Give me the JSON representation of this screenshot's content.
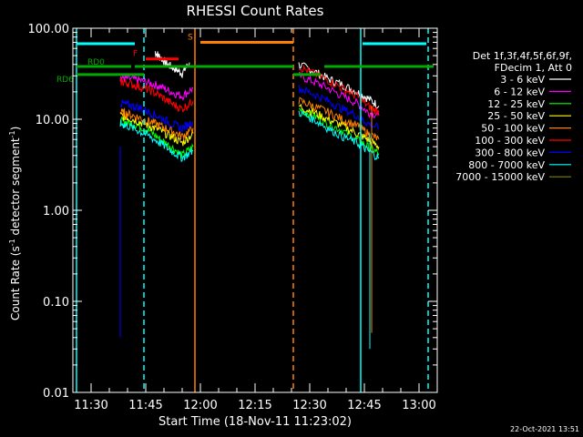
{
  "chart_data": {
    "type": "line",
    "title": "RHESSI Count Rates",
    "xlabel": "Start Time (18-Nov-11 11:23:02)",
    "ylabel_main": "Count Rate (s",
    "ylabel_sup1": "-1",
    "ylabel_mid": " detector segment",
    "ylabel_sup2": "-1",
    "ylabel_end": ")",
    "yscale": "log",
    "ylim": [
      0.01,
      100
    ],
    "xlim_minutes": [
      685,
      785
    ],
    "xticks": [
      {
        "m": 690,
        "label": "11:30"
      },
      {
        "m": 705,
        "label": "11:45"
      },
      {
        "m": 720,
        "label": "12:00"
      },
      {
        "m": 735,
        "label": "12:15"
      },
      {
        "m": 750,
        "label": "12:30"
      },
      {
        "m": 765,
        "label": "12:45"
      },
      {
        "m": 780,
        "label": "13:00"
      }
    ],
    "yticks": [
      {
        "v": 100,
        "label": "100.00"
      },
      {
        "v": 10,
        "label": "10.00"
      },
      {
        "v": 1,
        "label": "1.00"
      },
      {
        "v": 0.1,
        "label": "0.10"
      },
      {
        "v": 0.01,
        "label": "0.01"
      }
    ],
    "legend_header": [
      "Det 1f,3f,4f,5f,6f,9f,",
      "FDecim 1, Att 0"
    ],
    "legend_position": "right",
    "series": [
      {
        "name": "3 - 6 keV",
        "color": "#ffffff",
        "segments": [
          {
            "m": [
              707.5,
              709,
              711,
              713,
              715,
              717
            ],
            "v": [
              55,
              48,
              40,
              36,
              32,
              42
            ]
          },
          {
            "m": [
              747,
              751,
              755,
              759,
              763,
              766,
              769
            ],
            "v": [
              40,
              34,
              28,
              24,
              20,
              17,
              14
            ]
          }
        ]
      },
      {
        "name": "6 - 12 keV",
        "color": "#ff00ff",
        "segments": [
          {
            "m": [
              698,
              700,
              703,
              706,
              709,
              712,
              715,
              718
            ],
            "v": [
              29,
              28,
              27,
              25,
              23,
              20,
              18,
              22
            ]
          },
          {
            "m": [
              747,
              751,
              755,
              759,
              763,
              766,
              769
            ],
            "v": [
              30,
              26,
              22,
              18,
              15,
              12,
              11
            ]
          }
        ]
      },
      {
        "name": "12 - 25 keV",
        "color": "#00ff00",
        "segments": [
          {
            "m": [
              698,
              700,
              703,
              706,
              709,
              712,
              715,
              718
            ],
            "v": [
              9.5,
              9.2,
              8.5,
              7.5,
              6,
              5,
              4,
              5
            ]
          },
          {
            "m": [
              747,
              751,
              755,
              759,
              763,
              766,
              769
            ],
            "v": [
              13,
              11,
              9,
              7.5,
              6,
              5,
              4.2
            ]
          }
        ]
      },
      {
        "name": "25 - 50 keV",
        "color": "#ffff00",
        "segments": [
          {
            "m": [
              698,
              700,
              703,
              706,
              709,
              712,
              715,
              718
            ],
            "v": [
              11,
              10.5,
              9.5,
              8.5,
              7.5,
              6.5,
              5.5,
              7
            ]
          },
          {
            "m": [
              747,
              751,
              755,
              759,
              763,
              766,
              769
            ],
            "v": [
              14,
              12,
              10,
              8.5,
              7,
              6,
              5
            ]
          }
        ]
      },
      {
        "name": "50 - 100 keV",
        "color": "#ff8000",
        "segments": [
          {
            "m": [
              698,
              700,
              703,
              706,
              709,
              712,
              715,
              718
            ],
            "v": [
              12,
              11.5,
              10.5,
              9.5,
              8.5,
              7.5,
              6.5,
              8
            ]
          },
          {
            "m": [
              747,
              751,
              755,
              759,
              763,
              766,
              769
            ],
            "v": [
              16,
              14,
              12,
              10,
              8.5,
              7,
              6
            ]
          }
        ]
      },
      {
        "name": "100 - 300 keV",
        "color": "#ff0000",
        "segments": [
          {
            "m": [
              698,
              700,
              703,
              706,
              709,
              712,
              715,
              718
            ],
            "v": [
              26,
              25,
              23,
              21,
              18,
              15,
              13,
              16
            ]
          },
          {
            "m": [
              747,
              751,
              755,
              759,
              763,
              766,
              769
            ],
            "v": [
              38,
              32,
              27,
              22,
              18,
              14,
              12
            ]
          }
        ]
      },
      {
        "name": "300 - 800 keV",
        "color": "#0000ff",
        "segments": [
          {
            "m": [
              698,
              700,
              703,
              706,
              709,
              712,
              715,
              718
            ],
            "v": [
              15,
              14.5,
              13.5,
              12,
              10.5,
              9,
              8,
              9.5
            ]
          },
          {
            "m": [
              747,
              751,
              755,
              759,
              763,
              766,
              769
            ],
            "v": [
              22,
              19,
              16,
              13,
              11,
              9,
              8
            ]
          }
        ]
      },
      {
        "name": "800 - 7000 keV",
        "color": "#00ffff",
        "segments": [
          {
            "m": [
              698,
              700,
              703,
              706,
              709,
              712,
              715,
              718
            ],
            "v": [
              9,
              8.5,
              7.5,
              6.5,
              5.5,
              4.5,
              3.8,
              4.5
            ]
          },
          {
            "m": [
              747,
              751,
              755,
              759,
              763,
              766,
              769
            ],
            "v": [
              12,
              10,
              8,
              6.5,
              5.5,
              4.5,
              3.8
            ]
          }
        ]
      },
      {
        "name": "7000 - 15000 keV",
        "color": "#808000",
        "segments": []
      }
    ],
    "attenuator_bars": {
      "color": "#00ffff",
      "segments": [
        {
          "m": [
            686,
            702
          ]
        },
        {
          "m": [
            764.5,
            782
          ]
        }
      ]
    },
    "spikes": [
      {
        "m": 698,
        "v": [
          0.04,
          5
        ],
        "color": "#0000ff"
      },
      {
        "m": 766.5,
        "v": [
          0.03,
          7
        ],
        "color": "#00ffff"
      },
      {
        "m": 767,
        "v": [
          0.045,
          14
        ],
        "color": "#ff8000"
      }
    ],
    "boundaries": [
      {
        "m": 686,
        "style": "solid",
        "color": "#00ffff"
      },
      {
        "m": 704.5,
        "style": "dashed",
        "color": "#00ffff"
      },
      {
        "m": 718.5,
        "style": "solid",
        "color": "#ff8000"
      },
      {
        "m": 745.5,
        "style": "dashed",
        "color": "#ff8000"
      },
      {
        "m": 764,
        "style": "solid",
        "color": "#00ffff"
      },
      {
        "m": 782.5,
        "style": "dashed",
        "color": "#00ffff"
      }
    ],
    "state_bars": [
      {
        "label": "RD0",
        "color": "#00aa00",
        "v": 38,
        "segments": [
          {
            "m": [
              686,
              701
            ]
          },
          {
            "m": [
              702,
              745.5
            ]
          },
          {
            "m": [
              754,
              784
            ]
          }
        ]
      },
      {
        "label": "RD6",
        "color": "#00aa00",
        "v": 31,
        "segments": [
          {
            "m": [
              686,
              704.5
            ]
          },
          {
            "m": [
              745.5,
              753
            ]
          }
        ]
      },
      {
        "label": "F",
        "color": "#ff0000",
        "v": 46,
        "segments": [
          {
            "m": [
              705,
              714
            ]
          }
        ]
      },
      {
        "label": "S",
        "color": "#ff8000",
        "v": 70,
        "segments": [
          {
            "m": [
              720,
              745.5
            ]
          }
        ]
      }
    ],
    "footer_date": "22-Oct-2021 13:51"
  }
}
